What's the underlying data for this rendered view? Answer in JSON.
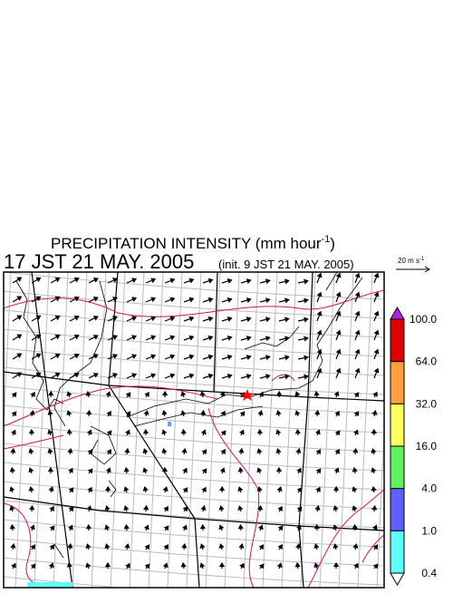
{
  "title": {
    "text": "PRECIPITATION INTENSITY (mm hour",
    "superscript": "-1",
    "close": ")"
  },
  "valid_time": "17 JST 21 MAY. 2005",
  "init_time": "(init. 9 JST 21 MAY. 2005)",
  "vector_scale": {
    "label": "20 m s",
    "superscript": "-1"
  },
  "colorbar": {
    "levels": [
      "100.0",
      "64.0",
      "32.0",
      "16.0",
      "4.0",
      "1.0",
      "0.4"
    ],
    "colors": [
      "#dd0000",
      "#ffa040",
      "#ffff60",
      "#60f060",
      "#6060ff",
      "#60ffff"
    ],
    "over_color": "#b020e0",
    "under_color": "#ffffff"
  }
}
